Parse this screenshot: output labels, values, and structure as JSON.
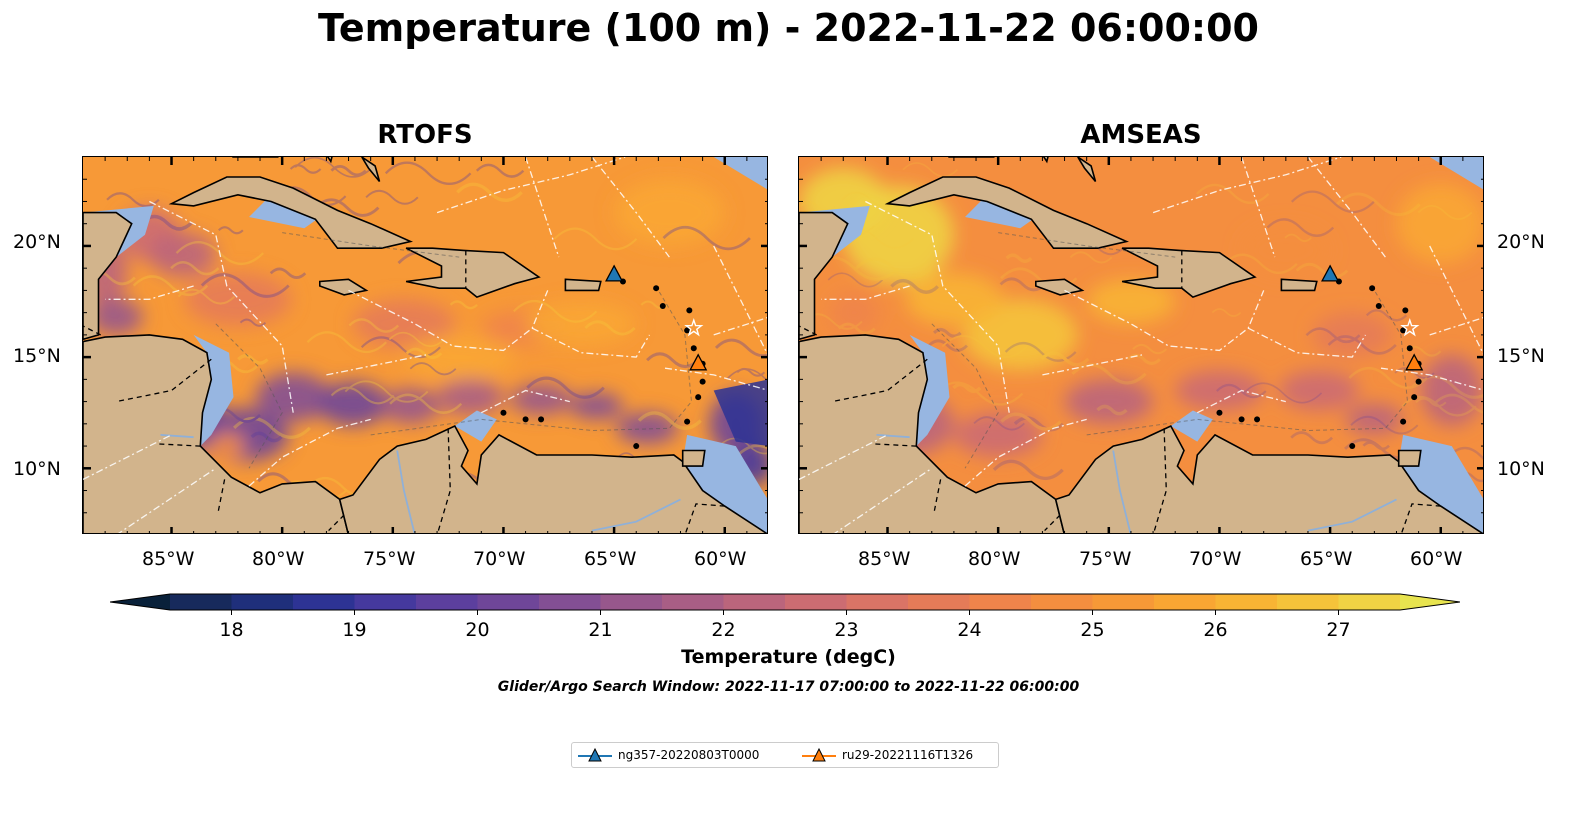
{
  "title": "Temperature (100 m) - 2022-11-22 06:00:00",
  "panels": [
    {
      "title": "RTOFS",
      "model": "rtofs"
    },
    {
      "title": "AMSEAS",
      "model": "amseas"
    }
  ],
  "lon_ticks": [
    "85°W",
    "80°W",
    "75°W",
    "70°W",
    "65°W",
    "60°W"
  ],
  "lat_ticks": [
    "20°N",
    "15°N",
    "10°N"
  ],
  "colorbar": {
    "label": "Temperature (degC)",
    "ticks": [
      "18",
      "19",
      "20",
      "21",
      "22",
      "23",
      "24",
      "25",
      "26",
      "27"
    ],
    "min": 17.5,
    "max": 27.5,
    "colors": [
      "#09213a",
      "#172a5c",
      "#1f2f7b",
      "#2d3394",
      "#45399e",
      "#5c3f9e",
      "#6f4699",
      "#834f94",
      "#97578c",
      "#a95e85",
      "#bb657c",
      "#cc6c72",
      "#da7466",
      "#e57b58",
      "#ef844b",
      "#f48e3f",
      "#f79937",
      "#f9a633",
      "#f8b434",
      "#f5c33a",
      "#f0d344",
      "#e8e44f"
    ],
    "extend": "both"
  },
  "search_window": "Glider/Argo Search Window: 2022-11-17 07:00:00 to 2022-11-22 06:00:00",
  "legend": [
    {
      "label": "ng357-20220803T0000",
      "color": "#1f77b4",
      "marker": "triangle-up"
    },
    {
      "label": "ru29-20221116T1326",
      "color": "#ff7f0e",
      "marker": "triangle-up"
    }
  ],
  "map_extent": {
    "lon": [
      -89,
      -58
    ],
    "lat": [
      7,
      24
    ]
  },
  "glider_positions": [
    {
      "name": "ng357-20220803T0000",
      "lon": -65.0,
      "lat": 18.7,
      "color": "#1f77b4"
    },
    {
      "name": "ru29-20221116T1326",
      "lon": -61.2,
      "lat": 14.7,
      "color": "#ff7f0e"
    }
  ],
  "colors": {
    "land": "#d2b48c",
    "shelf_water": "#97b6e1",
    "boundary_lines": "#ffffff",
    "coastline": "#000000"
  }
}
